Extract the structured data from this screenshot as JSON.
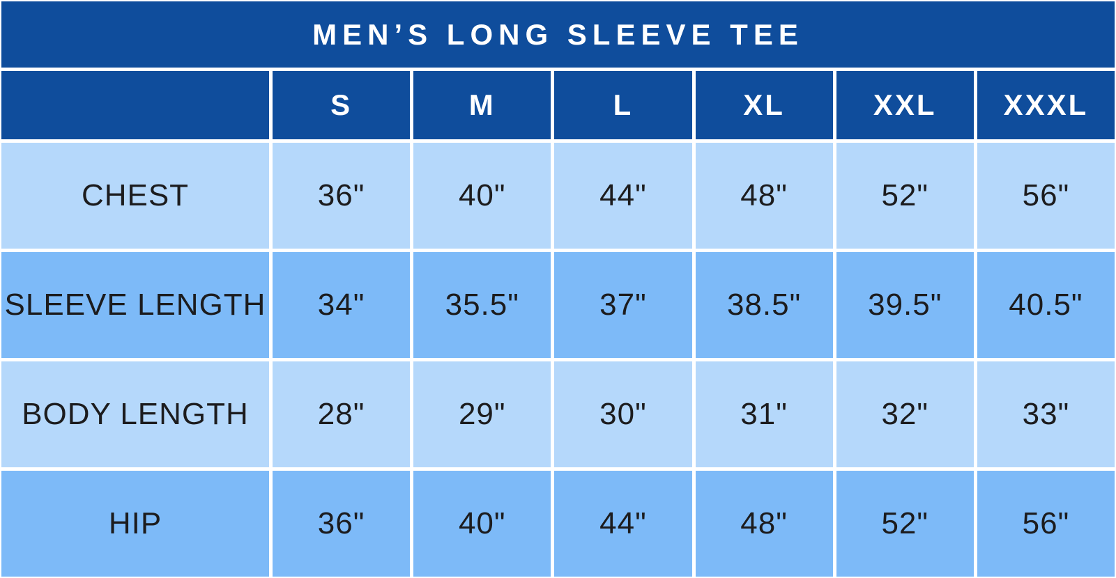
{
  "table": {
    "title": "MEN’S LONG SLEEVE TEE",
    "columns": [
      "S",
      "M",
      "L",
      "XL",
      "XXL",
      "XXXL"
    ],
    "rows": [
      {
        "label": "CHEST",
        "values": [
          "36\"",
          "40\"",
          "44\"",
          "48\"",
          "52\"",
          "56\""
        ]
      },
      {
        "label": "SLEEVE LENGTH",
        "values": [
          "34\"",
          "35.5\"",
          "37\"",
          "38.5\"",
          "39.5\"",
          "40.5\""
        ]
      },
      {
        "label": "BODY LENGTH",
        "values": [
          "28\"",
          "29\"",
          "30\"",
          "31\"",
          "32\"",
          "33\""
        ]
      },
      {
        "label": "HIP",
        "values": [
          "36\"",
          "40\"",
          "44\"",
          "48\"",
          "52\"",
          "56\""
        ]
      }
    ],
    "colors": {
      "header_bg": "#0F4D9C",
      "row_light": "#B5D8FB",
      "row_medium": "#7DBAF8",
      "gridline": "#FFFFFF",
      "text_dark": "#1C1C1E",
      "text_light": "#FFFFFF"
    }
  },
  "chart_data": {
    "type": "table",
    "title": "MEN’S LONG SLEEVE TEE",
    "columns": [
      "S",
      "M",
      "L",
      "XL",
      "XXL",
      "XXXL"
    ],
    "row_headers": [
      "CHEST",
      "SLEEVE LENGTH",
      "BODY LENGTH",
      "HIP"
    ],
    "units": "inches",
    "values": [
      [
        36,
        40,
        44,
        48,
        52,
        56
      ],
      [
        34,
        35.5,
        37,
        38.5,
        39.5,
        40.5
      ],
      [
        28,
        29,
        30,
        31,
        32,
        33
      ],
      [
        36,
        40,
        44,
        48,
        52,
        56
      ]
    ]
  }
}
